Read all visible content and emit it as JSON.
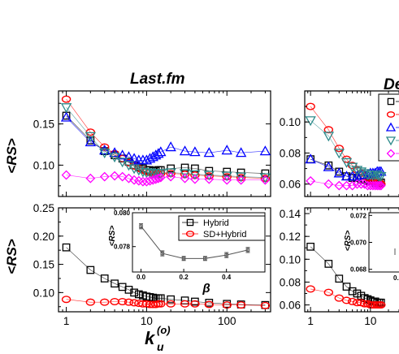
{
  "titles": {
    "left": "Last.fm",
    "right": "De"
  },
  "ylabel": "<RS>",
  "xlabel": {
    "base": "k",
    "sub": "u",
    "sup": "(o)"
  },
  "colors": {
    "black": "#000000",
    "red": "#ff0000",
    "blue": "#0000ff",
    "teal": "#2e8b8b",
    "magenta": "#ff00ff",
    "gray": "#555555"
  },
  "chart_data": [
    {
      "id": "top-left",
      "type": "scatter",
      "title": "Last.fm",
      "xscale": "log",
      "xlim": [
        0.8,
        350
      ],
      "ylim": [
        0.062,
        0.19
      ],
      "yticks": [
        0.1,
        0.15
      ],
      "ytick_labels": [
        "0.10",
        "0.15"
      ],
      "series": [
        {
          "color": "#000000",
          "marker": "square",
          "x": [
            1,
            2,
            3,
            4,
            5,
            6,
            7,
            8,
            9,
            10,
            11,
            12,
            13,
            14,
            15,
            20,
            30,
            40,
            60,
            100,
            150,
            300
          ],
          "y": [
            0.16,
            0.13,
            0.117,
            0.112,
            0.108,
            0.104,
            0.1,
            0.098,
            0.096,
            0.094,
            0.094,
            0.093,
            0.093,
            0.094,
            0.094,
            0.096,
            0.097,
            0.096,
            0.093,
            0.092,
            0.091,
            0.09
          ]
        },
        {
          "color": "#ff0000",
          "marker": "circle",
          "x": [
            1,
            2,
            3,
            4,
            5,
            6,
            7,
            8,
            9,
            10,
            11,
            12,
            13,
            14,
            15,
            20,
            30,
            40,
            60,
            100,
            150,
            300
          ],
          "y": [
            0.18,
            0.14,
            0.122,
            0.114,
            0.108,
            0.103,
            0.099,
            0.096,
            0.094,
            0.092,
            0.091,
            0.09,
            0.09,
            0.089,
            0.09,
            0.09,
            0.089,
            0.088,
            0.087,
            0.086,
            0.085,
            0.084
          ]
        },
        {
          "color": "#0000ff",
          "marker": "triangle-up",
          "x": [
            1,
            2,
            3,
            4,
            5,
            6,
            7,
            8,
            9,
            10,
            11,
            12,
            13,
            14,
            15,
            20,
            30,
            40,
            60,
            100,
            150,
            300
          ],
          "y": [
            0.158,
            0.128,
            0.118,
            0.115,
            0.112,
            0.11,
            0.108,
            0.106,
            0.106,
            0.106,
            0.108,
            0.11,
            0.112,
            0.114,
            0.116,
            0.122,
            0.117,
            0.116,
            0.115,
            0.118,
            0.115,
            0.117
          ]
        },
        {
          "color": "#2e8b8b",
          "marker": "triangle-down",
          "x": [
            1,
            2,
            3,
            4,
            5,
            6,
            7,
            8,
            9,
            10,
            11,
            12,
            13,
            14,
            15,
            20,
            30,
            40,
            60,
            100,
            150,
            300
          ],
          "y": [
            0.17,
            0.135,
            0.115,
            0.11,
            0.104,
            0.1,
            0.096,
            0.094,
            0.092,
            0.091,
            0.091,
            0.09,
            0.09,
            0.09,
            0.09,
            0.091,
            0.09,
            0.089,
            0.088,
            0.087,
            0.086,
            0.085
          ]
        },
        {
          "color": "#ff00ff",
          "marker": "diamond",
          "x": [
            1,
            2,
            3,
            4,
            5,
            6,
            7,
            8,
            9,
            10,
            11,
            12,
            13,
            14,
            15,
            20,
            30,
            40,
            60,
            100,
            150,
            300
          ],
          "y": [
            0.088,
            0.084,
            0.086,
            0.087,
            0.086,
            0.084,
            0.082,
            0.081,
            0.08,
            0.08,
            0.081,
            0.082,
            0.083,
            0.084,
            0.085,
            0.086,
            0.084,
            0.083,
            0.083,
            0.082,
            0.082,
            0.082
          ]
        }
      ]
    },
    {
      "id": "bottom-left",
      "type": "scatter",
      "xscale": "log",
      "xlim": [
        0.8,
        350
      ],
      "ylim": [
        0.066,
        0.25
      ],
      "yticks": [
        0.1,
        0.15,
        0.2,
        0.25
      ],
      "ytick_labels": [
        "0.10",
        "0.15",
        "0.20",
        "0.25"
      ],
      "xticks": [
        1,
        10,
        100
      ],
      "xtick_labels": [
        "1",
        "10",
        "100"
      ],
      "series": [
        {
          "name": "Hybrid",
          "color": "#000000",
          "marker": "square",
          "x": [
            1,
            2,
            3,
            4,
            5,
            6,
            7,
            8,
            9,
            10,
            11,
            12,
            13,
            14,
            15,
            20,
            30,
            40,
            60,
            100,
            150,
            300
          ],
          "y": [
            0.18,
            0.14,
            0.125,
            0.116,
            0.11,
            0.105,
            0.1,
            0.097,
            0.095,
            0.093,
            0.092,
            0.091,
            0.09,
            0.09,
            0.09,
            0.088,
            0.086,
            0.084,
            0.082,
            0.08,
            0.079,
            0.078
          ]
        },
        {
          "name": "SD+Hybrid",
          "color": "#ff0000",
          "marker": "circle",
          "x": [
            1,
            2,
            3,
            4,
            5,
            6,
            7,
            8,
            9,
            10,
            11,
            12,
            13,
            14,
            15,
            20,
            30,
            40,
            60,
            100,
            150,
            300
          ],
          "y": [
            0.088,
            0.083,
            0.083,
            0.084,
            0.084,
            0.083,
            0.082,
            0.081,
            0.08,
            0.08,
            0.079,
            0.079,
            0.079,
            0.08,
            0.08,
            0.08,
            0.08,
            0.08,
            0.079,
            0.078,
            0.078,
            0.077
          ]
        }
      ],
      "legend_position": "top-right",
      "inset": {
        "type": "line",
        "xlabel": "β",
        "ylabel": "<RS>",
        "xlim": [
          -0.04,
          0.58
        ],
        "ylim": [
          0.0765,
          0.08
        ],
        "xticks": [
          0.0,
          0.2,
          0.4
        ],
        "xtick_labels": [
          "0.0",
          "0.2",
          "0.4"
        ],
        "yticks": [
          0.078,
          0.08
        ],
        "ytick_labels": [
          "0.078",
          "0.080"
        ],
        "x": [
          0.0,
          0.1,
          0.2,
          0.3,
          0.4,
          0.5
        ],
        "y": [
          0.0792,
          0.0776,
          0.0773,
          0.0773,
          0.0775,
          0.0778
        ],
        "yerr": [
          0.00015,
          0.00015,
          0.00012,
          0.00012,
          0.00015,
          0.00015
        ]
      }
    },
    {
      "id": "top-right",
      "type": "scatter",
      "title": "De",
      "xscale": "log",
      "xlim": [
        0.8,
        30
      ],
      "ylim": [
        0.052,
        0.12
      ],
      "yticks": [
        0.06,
        0.08,
        0.1
      ],
      "ytick_labels": [
        "0.06",
        "0.08",
        "0.10"
      ],
      "series": [
        {
          "color": "#000000",
          "marker": "square",
          "x": [
            1,
            2,
            3,
            4,
            5,
            6,
            7,
            8,
            9,
            10,
            11,
            12,
            13,
            14,
            15
          ],
          "y": [
            0.076,
            0.072,
            0.068,
            0.065,
            0.064,
            0.064,
            0.063,
            0.063,
            0.062,
            0.062,
            0.062,
            0.061,
            0.061,
            0.061,
            0.061
          ]
        },
        {
          "color": "#ff0000",
          "marker": "circle",
          "x": [
            1,
            2,
            3,
            4,
            5,
            6,
            7,
            8,
            9,
            10,
            11,
            12,
            13,
            14,
            15
          ],
          "y": [
            0.11,
            0.095,
            0.083,
            0.076,
            0.072,
            0.069,
            0.067,
            0.065,
            0.064,
            0.063,
            0.062,
            0.062,
            0.061,
            0.061,
            0.06
          ]
        },
        {
          "color": "#0000ff",
          "marker": "triangle-up",
          "x": [
            1,
            2,
            3,
            4,
            5,
            6,
            7,
            8,
            9,
            10,
            11,
            12,
            13,
            14,
            15
          ],
          "y": [
            0.076,
            0.071,
            0.067,
            0.065,
            0.065,
            0.065,
            0.066,
            0.066,
            0.066,
            0.067,
            0.067,
            0.067,
            0.068,
            0.068,
            0.068
          ]
        },
        {
          "color": "#2e8b8b",
          "marker": "triangle-down",
          "x": [
            1,
            2,
            3,
            4,
            5,
            6,
            7,
            8,
            9,
            10,
            11,
            12,
            13,
            14,
            15
          ],
          "y": [
            0.101,
            0.091,
            0.08,
            0.074,
            0.071,
            0.069,
            0.068,
            0.067,
            0.066,
            0.066,
            0.066,
            0.066,
            0.066,
            0.065,
            0.065
          ]
        },
        {
          "color": "#ff00ff",
          "marker": "diamond",
          "x": [
            1,
            2,
            3,
            4,
            5,
            6,
            7,
            8,
            9,
            10,
            11,
            12,
            13,
            14,
            15
          ],
          "y": [
            0.062,
            0.06,
            0.059,
            0.059,
            0.059,
            0.06,
            0.06,
            0.06,
            0.059,
            0.059,
            0.059,
            0.059,
            0.059,
            0.059,
            0.059
          ]
        }
      ]
    },
    {
      "id": "bottom-right",
      "type": "scatter",
      "xscale": "log",
      "xlim": [
        0.8,
        30
      ],
      "ylim": [
        0.054,
        0.145
      ],
      "yticks": [
        0.06,
        0.08,
        0.1,
        0.12,
        0.14
      ],
      "ytick_labels": [
        "0.06",
        "0.08",
        "0.10",
        "0.12",
        "0.14"
      ],
      "xticks": [
        1,
        10
      ],
      "xtick_labels": [
        "1",
        "10"
      ],
      "series": [
        {
          "name": "Hybrid",
          "color": "#000000",
          "marker": "square",
          "x": [
            1,
            2,
            3,
            4,
            5,
            6,
            7,
            8,
            9,
            10,
            11,
            12,
            13,
            14,
            15
          ],
          "y": [
            0.111,
            0.096,
            0.083,
            0.076,
            0.072,
            0.07,
            0.068,
            0.066,
            0.065,
            0.064,
            0.063,
            0.063,
            0.062,
            0.062,
            0.062
          ]
        },
        {
          "name": "SD+Hybrid",
          "color": "#ff0000",
          "marker": "circle",
          "x": [
            1,
            2,
            3,
            4,
            5,
            6,
            7,
            8,
            9,
            10,
            11,
            12,
            13,
            14,
            15
          ],
          "y": [
            0.074,
            0.071,
            0.066,
            0.064,
            0.063,
            0.062,
            0.062,
            0.061,
            0.061,
            0.06,
            0.06,
            0.06,
            0.06,
            0.06,
            0.06
          ]
        }
      ],
      "inset": {
        "ylabel": "<RS>",
        "yticks": [
          0.068,
          0.07,
          0.072
        ],
        "ytick_labels": [
          "0.068",
          "0.070",
          "0.072"
        ],
        "partial_xtick": "0."
      }
    }
  ]
}
